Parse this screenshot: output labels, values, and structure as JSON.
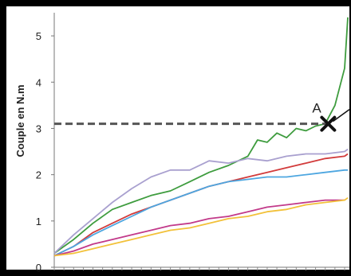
{
  "chart_data": {
    "type": "line",
    "ylabel": "Couple en N.m",
    "ylim": [
      0,
      5.5
    ],
    "xlim": [
      0,
      30
    ],
    "yticks": [
      0,
      1,
      2,
      3,
      4,
      5
    ],
    "ytick_labels": [
      "0",
      "1",
      "2",
      "3",
      "4",
      "5"
    ],
    "grid": false,
    "threshold": {
      "y": 3.1,
      "x_end": 28.3,
      "style": "dashed"
    },
    "annotation": {
      "label": "A",
      "x": 28.3,
      "y": 3.1
    },
    "series": [
      {
        "color": "#3e9c3e",
        "points": [
          [
            0,
            0.3
          ],
          [
            2,
            0.6
          ],
          [
            4,
            0.95
          ],
          [
            6,
            1.25
          ],
          [
            8,
            1.4
          ],
          [
            10,
            1.55
          ],
          [
            12,
            1.65
          ],
          [
            14,
            1.85
          ],
          [
            16,
            2.05
          ],
          [
            18,
            2.2
          ],
          [
            20,
            2.4
          ],
          [
            21,
            2.75
          ],
          [
            22,
            2.7
          ],
          [
            23,
            2.9
          ],
          [
            24,
            2.8
          ],
          [
            25,
            3.0
          ],
          [
            26,
            2.95
          ],
          [
            27,
            3.05
          ],
          [
            28,
            3.1
          ],
          [
            29,
            3.5
          ],
          [
            30,
            4.3
          ],
          [
            31,
            5.4
          ]
        ]
      },
      {
        "color": "#a9a0cf",
        "points": [
          [
            0,
            0.3
          ],
          [
            2,
            0.7
          ],
          [
            4,
            1.05
          ],
          [
            6,
            1.4
          ],
          [
            8,
            1.7
          ],
          [
            10,
            1.95
          ],
          [
            12,
            2.1
          ],
          [
            14,
            2.1
          ],
          [
            16,
            2.3
          ],
          [
            18,
            2.25
          ],
          [
            20,
            2.35
          ],
          [
            22,
            2.3
          ],
          [
            24,
            2.4
          ],
          [
            26,
            2.45
          ],
          [
            28,
            2.45
          ],
          [
            30,
            2.5
          ],
          [
            32,
            2.55
          ]
        ]
      },
      {
        "color": "#d23b3b",
        "points": [
          [
            0,
            0.25
          ],
          [
            2,
            0.45
          ],
          [
            4,
            0.75
          ],
          [
            6,
            0.95
          ],
          [
            8,
            1.15
          ],
          [
            10,
            1.3
          ],
          [
            12,
            1.45
          ],
          [
            14,
            1.6
          ],
          [
            16,
            1.75
          ],
          [
            18,
            1.85
          ],
          [
            20,
            1.95
          ],
          [
            22,
            2.05
          ],
          [
            24,
            2.15
          ],
          [
            26,
            2.25
          ],
          [
            28,
            2.35
          ],
          [
            30,
            2.4
          ],
          [
            32,
            2.45
          ]
        ]
      },
      {
        "color": "#4da6e0",
        "points": [
          [
            0,
            0.25
          ],
          [
            2,
            0.45
          ],
          [
            4,
            0.7
          ],
          [
            6,
            0.9
          ],
          [
            8,
            1.1
          ],
          [
            10,
            1.3
          ],
          [
            12,
            1.45
          ],
          [
            14,
            1.6
          ],
          [
            16,
            1.75
          ],
          [
            18,
            1.85
          ],
          [
            20,
            1.9
          ],
          [
            22,
            1.95
          ],
          [
            24,
            1.95
          ],
          [
            26,
            2.0
          ],
          [
            28,
            2.05
          ],
          [
            30,
            2.1
          ],
          [
            32,
            2.1
          ]
        ]
      },
      {
        "color": "#c23a8a",
        "points": [
          [
            0,
            0.25
          ],
          [
            2,
            0.35
          ],
          [
            4,
            0.5
          ],
          [
            6,
            0.6
          ],
          [
            8,
            0.7
          ],
          [
            10,
            0.8
          ],
          [
            12,
            0.9
          ],
          [
            14,
            0.95
          ],
          [
            16,
            1.05
          ],
          [
            18,
            1.1
          ],
          [
            20,
            1.2
          ],
          [
            22,
            1.3
          ],
          [
            24,
            1.35
          ],
          [
            26,
            1.4
          ],
          [
            28,
            1.45
          ],
          [
            30,
            1.45
          ]
        ]
      },
      {
        "color": "#f2c13a",
        "points": [
          [
            0,
            0.25
          ],
          [
            2,
            0.3
          ],
          [
            4,
            0.4
          ],
          [
            6,
            0.5
          ],
          [
            8,
            0.6
          ],
          [
            10,
            0.7
          ],
          [
            12,
            0.8
          ],
          [
            14,
            0.85
          ],
          [
            16,
            0.95
          ],
          [
            18,
            1.05
          ],
          [
            20,
            1.1
          ],
          [
            22,
            1.2
          ],
          [
            24,
            1.25
          ],
          [
            26,
            1.35
          ],
          [
            28,
            1.4
          ],
          [
            30,
            1.45
          ],
          [
            32,
            1.5
          ]
        ]
      }
    ]
  }
}
